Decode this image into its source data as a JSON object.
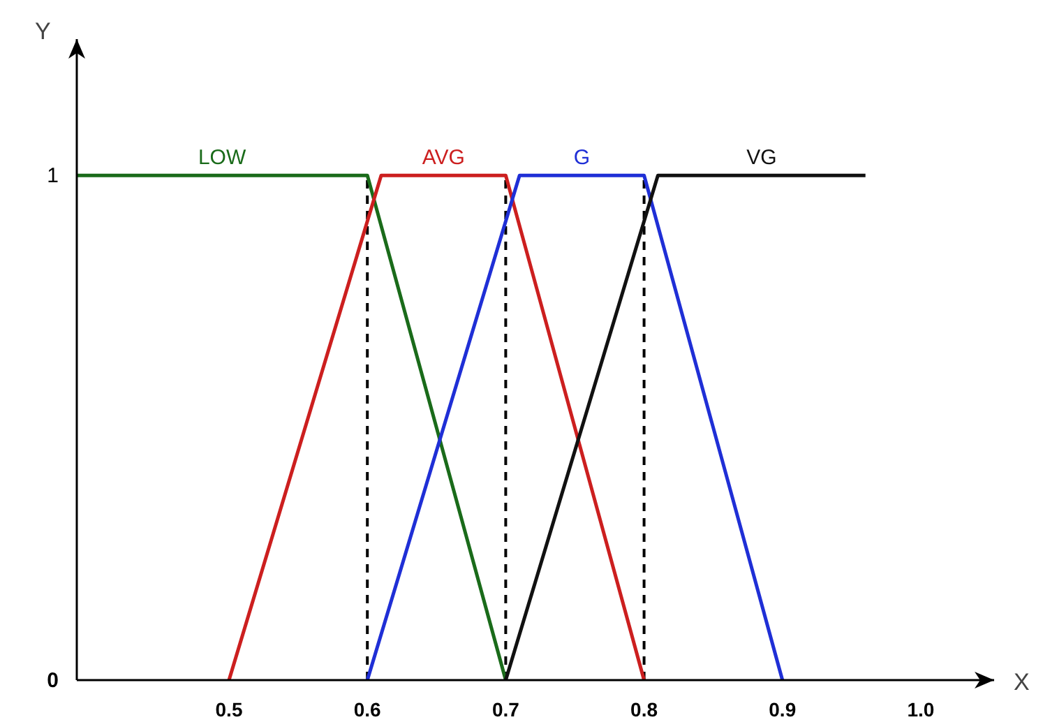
{
  "chart_data": {
    "type": "line",
    "xlabel": "X",
    "ylabel": "Y",
    "xlim": [
      0.39,
      1.053
    ],
    "ylim": [
      0,
      1.27
    ],
    "xticks": [
      0.5,
      0.6,
      0.7,
      0.8,
      0.9,
      {
        "value": 1,
        "label": "1.0"
      }
    ],
    "yticks": [
      0,
      1
    ],
    "grid": false,
    "marker": "none",
    "line_style": "solid",
    "series": [
      {
        "name": "LOW",
        "color": "#1a6b1a",
        "x": [
          0.39,
          0.6,
          0.7
        ],
        "values": [
          1,
          1,
          0
        ]
      },
      {
        "name": "AVG",
        "color": "#cc1f1f",
        "x": [
          0.5,
          0.61,
          0.7,
          0.8
        ],
        "values": [
          0,
          1,
          1,
          0
        ]
      },
      {
        "name": "G",
        "color": "#1f2fd6",
        "x": [
          0.6,
          0.71,
          0.8,
          0.9
        ],
        "values": [
          0,
          1,
          1,
          0
        ]
      },
      {
        "name": "VG",
        "color": "#111111",
        "x": [
          0.7,
          0.81,
          0.96
        ],
        "values": [
          0,
          1,
          1
        ]
      }
    ],
    "ref_lines": [
      {
        "axis": "x",
        "value": 0.6,
        "color": "#000000",
        "line_style": "dashed"
      },
      {
        "axis": "x",
        "value": 0.7,
        "color": "#000000",
        "line_style": "dashed"
      },
      {
        "axis": "x",
        "value": 0.8,
        "color": "#000000",
        "line_style": "dashed"
      }
    ]
  }
}
